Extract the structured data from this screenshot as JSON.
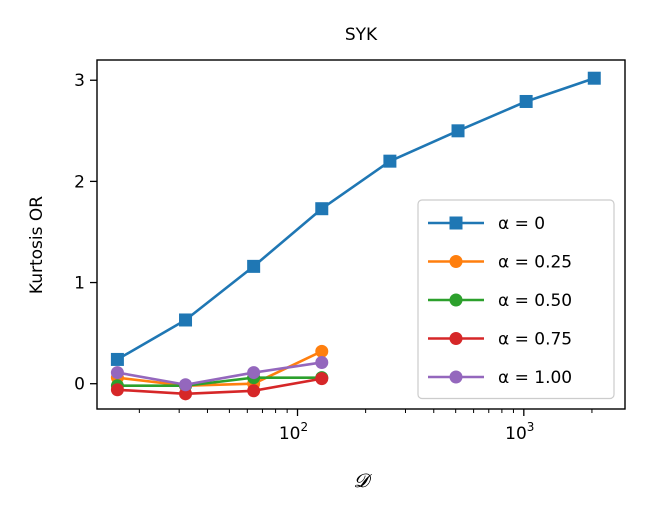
{
  "chart_data": {
    "type": "line",
    "title": "SYK",
    "xlabel": "𝓓",
    "ylabel": "Kurtosis OR",
    "xscale": "log",
    "xlim": [
      13,
      2800
    ],
    "ylim": [
      -0.25,
      3.2
    ],
    "xticks": [
      {
        "value": 100,
        "base": "10",
        "exp": "2"
      },
      {
        "value": 1000,
        "base": "10",
        "exp": "3"
      }
    ],
    "yticks": [
      {
        "value": 0,
        "label": "0"
      },
      {
        "value": 1,
        "label": "1"
      },
      {
        "value": 2,
        "label": "2"
      },
      {
        "value": 3,
        "label": "3"
      }
    ],
    "legend_position": "lower-right",
    "series": [
      {
        "name": "α = 0",
        "legend": "α = 0",
        "color": "#1f77b4",
        "marker": "square",
        "x": [
          16,
          32,
          64,
          128,
          256,
          512,
          1024,
          2048
        ],
        "y": [
          0.24,
          0.63,
          1.16,
          1.73,
          2.2,
          2.5,
          2.79,
          3.02
        ]
      },
      {
        "name": "α = 0.25",
        "legend": "α = 0.25",
        "color": "#ff7f0e",
        "marker": "circle",
        "x": [
          16,
          32,
          64,
          128
        ],
        "y": [
          0.06,
          -0.02,
          0.0,
          0.32
        ]
      },
      {
        "name": "α = 0.50",
        "legend": "α = 0.50",
        "color": "#2ca02c",
        "marker": "circle",
        "x": [
          16,
          32,
          64,
          128
        ],
        "y": [
          -0.02,
          -0.02,
          0.06,
          0.06
        ]
      },
      {
        "name": "α = 0.75",
        "legend": "α = 0.75",
        "color": "#d62728",
        "marker": "circle",
        "x": [
          16,
          32,
          64,
          128
        ],
        "y": [
          -0.06,
          -0.1,
          -0.07,
          0.05
        ]
      },
      {
        "name": "α = 1.00",
        "legend": "α = 1.00",
        "color": "#9467bd",
        "marker": "circle",
        "x": [
          16,
          32,
          64,
          128
        ],
        "y": [
          0.11,
          -0.01,
          0.11,
          0.21
        ]
      }
    ]
  }
}
